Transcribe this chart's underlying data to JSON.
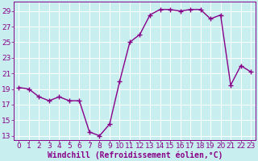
{
  "x": [
    0,
    1,
    2,
    3,
    4,
    5,
    6,
    7,
    8,
    9,
    10,
    11,
    12,
    13,
    14,
    15,
    16,
    17,
    18,
    19,
    20,
    21,
    22,
    23
  ],
  "y": [
    19.2,
    19.0,
    18.0,
    17.5,
    18.0,
    17.5,
    17.5,
    13.5,
    13.0,
    14.5,
    20.0,
    25.0,
    26.0,
    28.5,
    29.2,
    29.2,
    29.0,
    29.2,
    29.2,
    28.0,
    28.5,
    19.5,
    22.0,
    21.2
  ],
  "line_color": "#880088",
  "bg_color": "#c8eef0",
  "grid_color": "#ffffff",
  "xlabel": "Windchill (Refroidissement éolien,°C)",
  "yticks": [
    13,
    15,
    17,
    19,
    21,
    23,
    25,
    27,
    29
  ],
  "xticks": [
    0,
    1,
    2,
    3,
    4,
    5,
    6,
    7,
    8,
    9,
    10,
    11,
    12,
    13,
    14,
    15,
    16,
    17,
    18,
    19,
    20,
    21,
    22,
    23
  ],
  "ylim": [
    12.5,
    30.2
  ],
  "xlim": [
    -0.5,
    23.5
  ],
  "marker": "+",
  "markersize": 4,
  "linewidth": 1.0,
  "xlabel_fontsize": 7,
  "tick_fontsize": 6.5,
  "tick_color": "#880088",
  "label_color": "#880088"
}
